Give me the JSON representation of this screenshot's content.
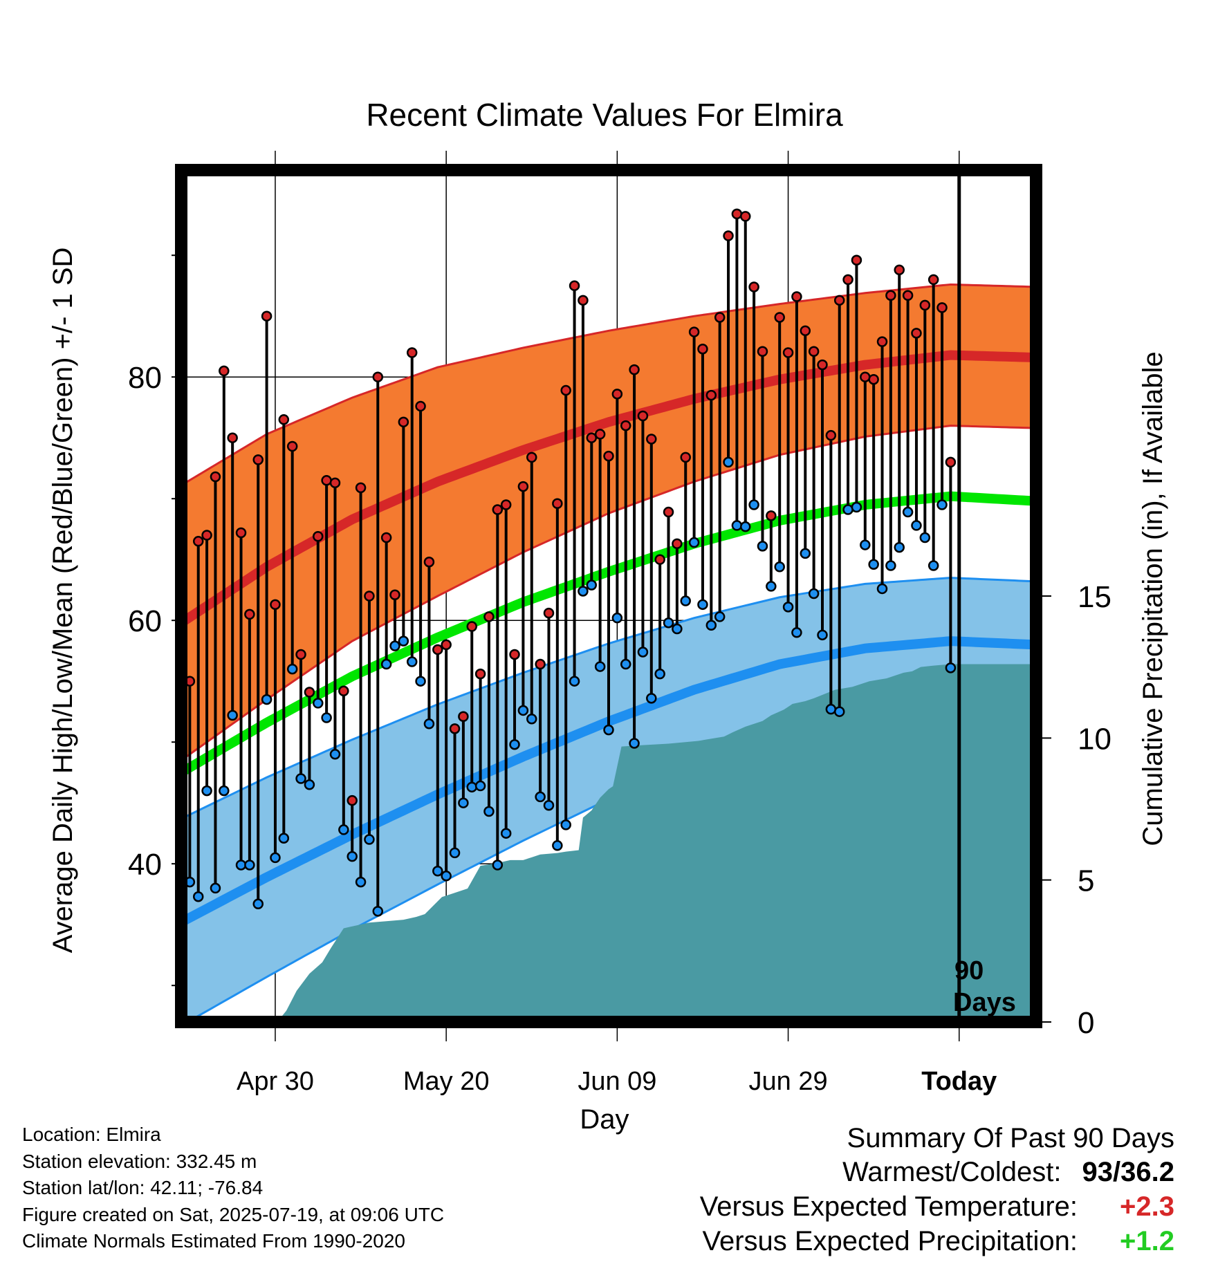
{
  "chart_data": {
    "type": "line",
    "title": "Recent Climate Values For Elmira",
    "xlabel": "Day",
    "ylabel_left": "Average Daily High/Low/Mean (Red/Blue/Green) +/- 1 SD",
    "ylabel_right": "Cumulative Precipitation (in), If Available",
    "x_tick_labels": [
      "Apr 30",
      "May 20",
      "Jun 09",
      "Jun 29",
      "Today"
    ],
    "x_tick_days": [
      18,
      38,
      58,
      78,
      98
    ],
    "x_range_days": [
      7,
      107
    ],
    "today_day": 98,
    "today_annotation": [
      "90",
      "Days"
    ],
    "y_left_range": [
      27,
      97
    ],
    "y_left_ticks": [
      40,
      60,
      80
    ],
    "y_left_minor_ticks": [
      30,
      50,
      70,
      90
    ],
    "y_right_range": [
      0,
      30
    ],
    "y_right_ticks": [
      0,
      5,
      10,
      15
    ],
    "grid": true,
    "colors": {
      "high_band": "#f47a30",
      "high_normal": "#d62728",
      "low_band": "#84c2e8",
      "low_normal": "#1e8ff0",
      "mean_normal": "#00e600",
      "precip_fill": "#4a9aa3",
      "high_dot": "#d62728",
      "low_dot": "#1e8ff0",
      "plus_red": "#d62728",
      "plus_green": "#22cc22"
    },
    "normals": {
      "days": [
        7,
        17,
        27,
        37,
        47,
        57,
        67,
        77,
        87,
        97,
        107
      ],
      "high": [
        59.8,
        64.4,
        68.3,
        71.4,
        74.0,
        76.3,
        78.2,
        79.8,
        81.0,
        81.8,
        81.6
      ],
      "high_sd": [
        11.3,
        10.9,
        10.0,
        9.4,
        8.4,
        7.5,
        6.8,
        6.2,
        5.9,
        5.8,
        5.8
      ],
      "low": [
        35.2,
        38.9,
        42.4,
        45.7,
        48.8,
        51.7,
        54.3,
        56.4,
        57.7,
        58.3,
        58.0
      ],
      "low_sd": [
        8.5,
        8.2,
        7.8,
        7.4,
        6.9,
        6.4,
        5.9,
        5.5,
        5.3,
        5.2,
        5.2
      ],
      "mean": [
        47.5,
        51.6,
        55.4,
        58.6,
        61.5,
        64.0,
        66.3,
        68.2,
        69.5,
        70.2,
        69.8
      ]
    },
    "series": [
      {
        "name": "High",
        "start_day": 8,
        "values": [
          55,
          66.5,
          67,
          71.8,
          80.5,
          75,
          67.2,
          60.5,
          73.2,
          85,
          61.3,
          76.5,
          74.3,
          57.2,
          54.1,
          66.9,
          71.5,
          71.3,
          54.2,
          45.2,
          70.9,
          62,
          80,
          66.8,
          62.1,
          76.3,
          82,
          77.6,
          64.8,
          57.6,
          58,
          51.1,
          52.1,
          59.5,
          55.6,
          60.3,
          69.1,
          69.5,
          57.2,
          71,
          73.4,
          56.4,
          60.6,
          69.6,
          78.9,
          87.5,
          86.3,
          75,
          75.3,
          73.5,
          78.6,
          76,
          80.6,
          76.8,
          74.9,
          65,
          68.9,
          66.3,
          73.4,
          83.7,
          82.3,
          78.5,
          84.9,
          91.6,
          93.4,
          93.2,
          87.4,
          82.1,
          68.6,
          84.9,
          82,
          86.6,
          83.8,
          82.1,
          81,
          75.2,
          86.3,
          88,
          89.6,
          80,
          79.8,
          82.9,
          86.7,
          88.8,
          86.7,
          83.6,
          85.9,
          88,
          85.7,
          73
        ],
        "label_daily": "High"
      },
      {
        "name": "Low",
        "start_day": 8,
        "values": [
          38.5,
          37.3,
          46,
          38,
          46,
          52.2,
          39.9,
          39.9,
          36.7,
          53.5,
          40.5,
          42.1,
          56,
          47,
          46.5,
          53.2,
          52,
          49,
          42.8,
          40.6,
          38.5,
          42,
          36.1,
          56.4,
          57.9,
          58.3,
          56.6,
          55,
          51.5,
          39.4,
          39,
          40.9,
          45,
          46.3,
          46.4,
          44.3,
          39.9,
          42.5,
          49.8,
          52.6,
          51.9,
          45.5,
          44.8,
          41.5,
          43.2,
          55,
          62.4,
          62.9,
          56.2,
          51,
          60.2,
          56.4,
          49.9,
          57.4,
          53.6,
          55.6,
          59.8,
          59.3,
          61.6,
          66.4,
          61.3,
          59.6,
          60.3,
          73,
          67.8,
          67.7,
          69.5,
          66.1,
          62.8,
          64.4,
          61.1,
          59,
          65.5,
          62.2,
          58.8,
          52.7,
          52.5,
          69.1,
          69.3,
          66.2,
          64.6,
          62.6,
          64.5,
          66,
          68.9,
          67.8,
          66.8,
          64.5,
          69.5,
          56.1
        ],
        "label_daily": "Low"
      },
      {
        "name": "Cumulative Precipitation",
        "days": [
          7,
          16.5,
          17.5,
          18.5,
          19.3,
          20.5,
          22,
          23.5,
          24.5,
          26,
          27.5,
          29,
          31,
          33,
          34.5,
          35.5,
          36.5,
          37.5,
          38.5,
          39.5,
          40.5,
          42,
          44,
          45.5,
          47,
          48,
          49,
          51,
          52,
          53.5,
          54,
          55,
          56,
          57,
          57.5,
          58.5,
          61,
          64,
          67.5,
          70.5,
          71.5,
          73,
          75,
          76,
          77.5,
          78.5,
          80,
          81,
          83.5,
          85.5,
          87.5,
          89.5,
          90.5,
          91.5,
          92.5,
          93.5,
          95,
          97,
          107
        ],
        "values": [
          0,
          0,
          0.05,
          0.1,
          0.4,
          1.1,
          1.7,
          2.1,
          2.6,
          3.3,
          3.4,
          3.5,
          3.55,
          3.6,
          3.7,
          3.8,
          4.1,
          4.4,
          4.5,
          4.6,
          4.7,
          5.5,
          5.6,
          5.7,
          5.7,
          5.8,
          5.9,
          5.95,
          6.0,
          6.05,
          7.2,
          7.45,
          7.9,
          8.2,
          8.3,
          9.7,
          9.75,
          9.8,
          9.9,
          10.05,
          10.2,
          10.4,
          10.6,
          10.8,
          11.0,
          11.2,
          11.3,
          11.4,
          11.7,
          11.8,
          12.0,
          12.1,
          12.2,
          12.3,
          12.35,
          12.5,
          12.55,
          12.6,
          12.6
        ]
      }
    ]
  },
  "location_block": {
    "location": "Location: Elmira",
    "elevation": "Station elevation: 332.45 m",
    "latlon": "Station lat/lon: 42.11; -76.84",
    "created": "Figure created on Sat, 2025-07-19, at 09:06 UTC",
    "normals_period": "Climate Normals Estimated From 1990-2020"
  },
  "summary": {
    "heading": "Summary Of Past 90 Days",
    "warm_cold_label": "Warmest/Coldest:",
    "warm_cold_value": "93/36.2",
    "temp_label": "Versus Expected Temperature:",
    "temp_value": "+2.3",
    "precip_label": "Versus Expected Precipitation:",
    "precip_value": "+1.2"
  }
}
